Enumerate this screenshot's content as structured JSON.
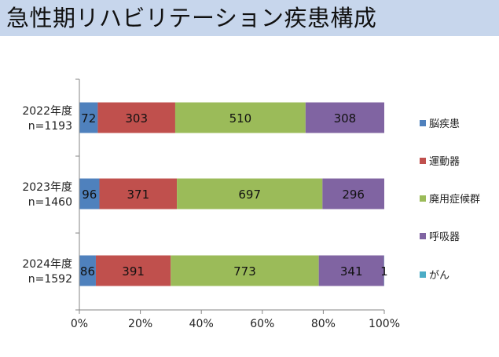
{
  "title": "急性期リハビリテーション疾患構成",
  "colors": {
    "title_band": "#c7d6ec",
    "series": [
      "#4f81bd",
      "#c0504d",
      "#9bbb59",
      "#8064a2",
      "#4bacc6"
    ]
  },
  "chart_data": {
    "type": "bar",
    "orientation": "horizontal",
    "stacking": "percent",
    "categories": [
      {
        "year": "2022年度",
        "total": "n=1193"
      },
      {
        "year": "2023年度",
        "total": "n=1460"
      },
      {
        "year": "2024年度",
        "total": "n=1592"
      }
    ],
    "series": [
      {
        "name": "脳疾患",
        "values": [
          72,
          96,
          86
        ]
      },
      {
        "name": "運動器",
        "values": [
          303,
          371,
          391
        ]
      },
      {
        "name": "廃用症候群",
        "values": [
          510,
          697,
          773
        ]
      },
      {
        "name": "呼吸器",
        "values": [
          308,
          296,
          341
        ]
      },
      {
        "name": "がん",
        "values": [
          0,
          0,
          1
        ]
      }
    ],
    "xticks": [
      "0%",
      "20%",
      "40%",
      "60%",
      "80%",
      "100%"
    ],
    "xlim": [
      0,
      100
    ],
    "legend_position": "right",
    "grid": false
  }
}
